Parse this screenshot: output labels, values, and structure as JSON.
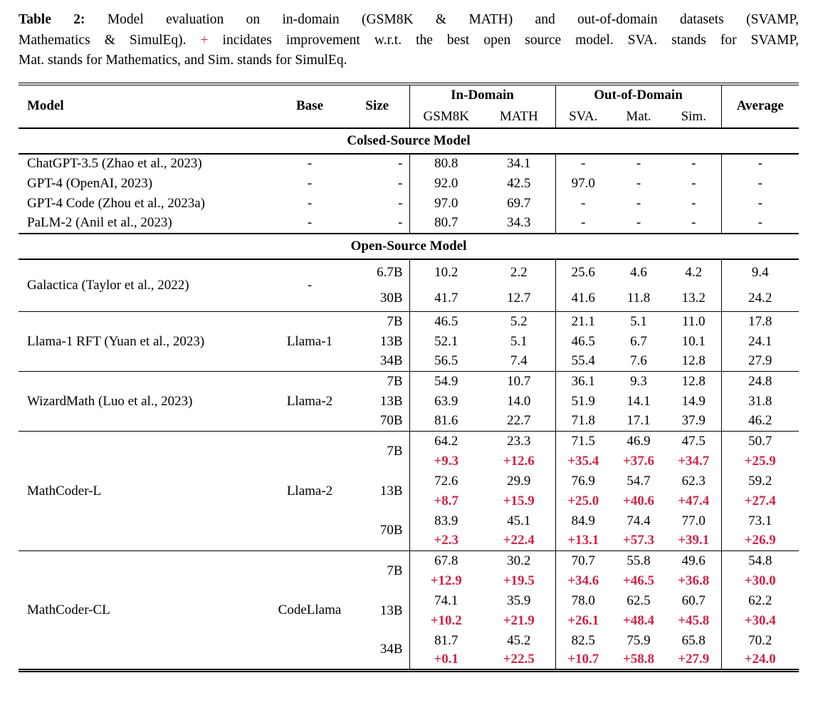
{
  "red_hex": "#cf2347",
  "caption": {
    "lines": [
      [
        {
          "t": "Table 2:",
          "b": true
        },
        {
          "t": "  Model evaluation on in-domain (GSM8K & MATH) and out-of-domain datasets (SVAMP,"
        }
      ],
      [
        {
          "t": "Mathematics & SimulEq). "
        },
        {
          "t": "+",
          "r": true
        },
        {
          "t": " incidates improvement w.r.t. the best open source model. SVA. stands for SVAMP,"
        }
      ],
      [
        {
          "t": "Mat. stands for Mathematics, and Sim. stands for SimulEq."
        }
      ]
    ]
  },
  "table": {
    "header": {
      "model": "Model",
      "base": "Base",
      "size": "Size",
      "in_domain": "In-Domain",
      "out_of_domain": "Out-of-Domain",
      "average": "Average",
      "sub": [
        "GSM8K",
        "MATH",
        "SVA.",
        "Mat.",
        "Sim."
      ]
    },
    "sections": [
      {
        "title": "Colsed-Source Model",
        "ruled_groups": false,
        "groups": [
          {
            "model": "ChatGPT-3.5 (Zhao et al., 2023)",
            "base": "-",
            "rows": [
              {
                "size": "-",
                "values": [
                  "80.8",
                  "34.1",
                  "-",
                  "-",
                  "-",
                  "-"
                ]
              }
            ]
          },
          {
            "model": "GPT-4 (OpenAI, 2023)",
            "base": "-",
            "rows": [
              {
                "size": "-",
                "values": [
                  "92.0",
                  "42.5",
                  "97.0",
                  "-",
                  "-",
                  "-"
                ]
              }
            ]
          },
          {
            "model": "GPT-4 Code (Zhou et al., 2023a)",
            "base": "-",
            "rows": [
              {
                "size": "-",
                "values": [
                  "97.0",
                  "69.7",
                  "-",
                  "-",
                  "-",
                  "-"
                ]
              }
            ]
          },
          {
            "model": "PaLM-2 (Anil et al., 2023)",
            "base": "-",
            "rows": [
              {
                "size": "-",
                "values": [
                  "80.7",
                  "34.3",
                  "-",
                  "-",
                  "-",
                  "-"
                ]
              }
            ]
          }
        ]
      },
      {
        "title": "Open-Source Model",
        "ruled_groups": true,
        "groups": [
          {
            "model": "Galactica (Taylor et al., 2022)",
            "base": "-",
            "rows": [
              {
                "size": "6.7B",
                "values": [
                  "10.2",
                  "2.2",
                  "25.6",
                  "4.6",
                  "4.2",
                  "9.4"
                ]
              },
              {
                "size": "30B",
                "values": [
                  "41.7",
                  "12.7",
                  "41.6",
                  "11.8",
                  "13.2",
                  "24.2"
                ]
              }
            ]
          },
          {
            "model": "Llama-1 RFT (Yuan et al., 2023)",
            "base": "Llama-1",
            "rows": [
              {
                "size": "7B",
                "values": [
                  "46.5",
                  "5.2",
                  "21.1",
                  "5.1",
                  "11.0",
                  "17.8"
                ]
              },
              {
                "size": "13B",
                "values": [
                  "52.1",
                  "5.1",
                  "46.5",
                  "6.7",
                  "10.1",
                  "24.1"
                ]
              },
              {
                "size": "34B",
                "values": [
                  "56.5",
                  "7.4",
                  "55.4",
                  "7.6",
                  "12.8",
                  "27.9"
                ]
              }
            ]
          },
          {
            "model": "WizardMath (Luo et al., 2023)",
            "base": "Llama-2",
            "rows": [
              {
                "size": "7B",
                "values": [
                  "54.9",
                  "10.7",
                  "36.1",
                  "9.3",
                  "12.8",
                  "24.8"
                ]
              },
              {
                "size": "13B",
                "values": [
                  "63.9",
                  "14.0",
                  "51.9",
                  "14.1",
                  "14.9",
                  "31.8"
                ]
              },
              {
                "size": "70B",
                "values": [
                  "81.6",
                  "22.7",
                  "71.8",
                  "17.1",
                  "37.9",
                  "46.2"
                ]
              }
            ]
          },
          {
            "model": "MathCoder-L",
            "base": "Llama-2",
            "rows": [
              {
                "size": "7B",
                "values": [
                  "64.2",
                  "23.3",
                  "71.5",
                  "46.9",
                  "47.5",
                  "50.7"
                ],
                "delta": [
                  "+9.3",
                  "+12.6",
                  "+35.4",
                  "+37.6",
                  "+34.7",
                  "+25.9"
                ]
              },
              {
                "size": "13B",
                "values": [
                  "72.6",
                  "29.9",
                  "76.9",
                  "54.7",
                  "62.3",
                  "59.2"
                ],
                "delta": [
                  "+8.7",
                  "+15.9",
                  "+25.0",
                  "+40.6",
                  "+47.4",
                  "+27.4"
                ]
              },
              {
                "size": "70B",
                "values": [
                  "83.9",
                  "45.1",
                  "84.9",
                  "74.4",
                  "77.0",
                  "73.1"
                ],
                "delta": [
                  "+2.3",
                  "+22.4",
                  "+13.1",
                  "+57.3",
                  "+39.1",
                  "+26.9"
                ]
              }
            ]
          },
          {
            "model": "MathCoder-CL",
            "base": "CodeLlama",
            "rows": [
              {
                "size": "7B",
                "values": [
                  "67.8",
                  "30.2",
                  "70.7",
                  "55.8",
                  "49.6",
                  "54.8"
                ],
                "delta": [
                  "+12.9",
                  "+19.5",
                  "+34.6",
                  "+46.5",
                  "+36.8",
                  "+30.0"
                ]
              },
              {
                "size": "13B",
                "values": [
                  "74.1",
                  "35.9",
                  "78.0",
                  "62.5",
                  "60.7",
                  "62.2"
                ],
                "delta": [
                  "+10.2",
                  "+21.9",
                  "+26.1",
                  "+48.4",
                  "+45.8",
                  "+30.4"
                ]
              },
              {
                "size": "34B",
                "values": [
                  "81.7",
                  "45.2",
                  "82.5",
                  "75.9",
                  "65.8",
                  "70.2"
                ],
                "delta": [
                  "+0.1",
                  "+22.5",
                  "+10.7",
                  "+58.8",
                  "+27.9",
                  "+24.0"
                ]
              }
            ]
          }
        ]
      }
    ]
  }
}
